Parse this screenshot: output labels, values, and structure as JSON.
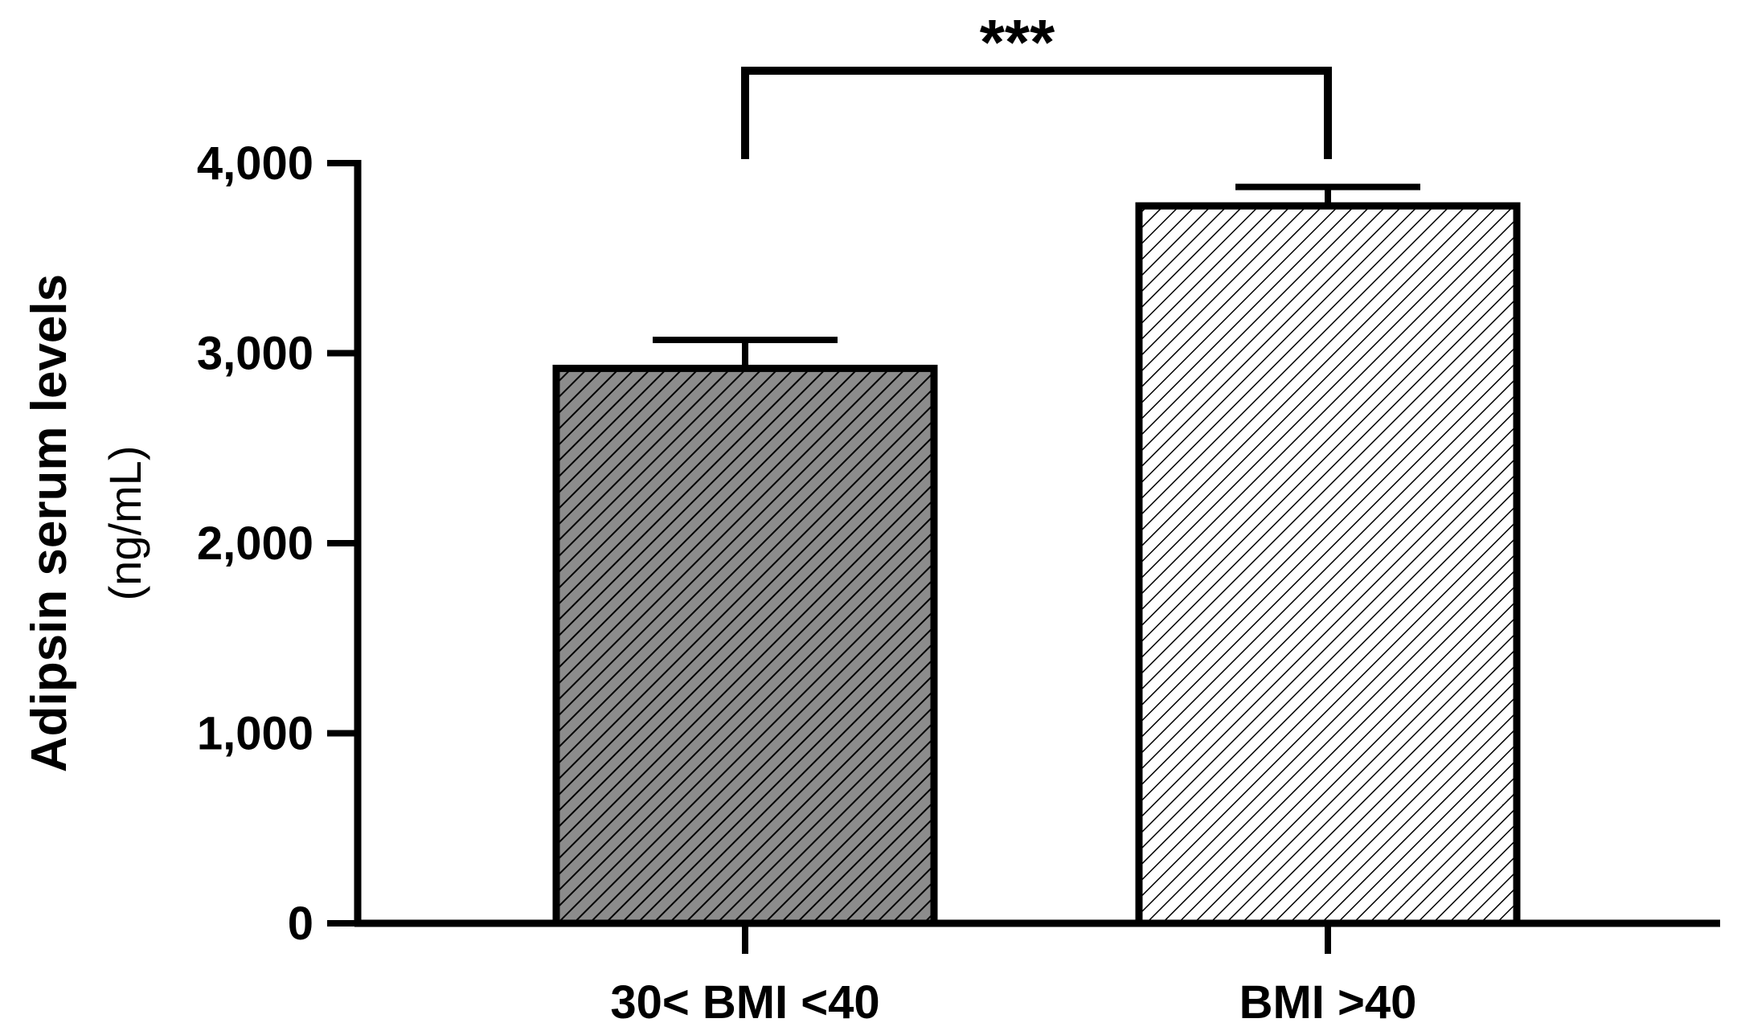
{
  "chart_data": {
    "type": "bar",
    "categories": [
      "30< BMI <40",
      "BMI >40"
    ],
    "values": [
      2920,
      3775
    ],
    "errors": [
      150,
      100
    ],
    "ylabel": "Adipsin serum levels",
    "ylabel_unit": "(ng/mL)",
    "ylim": [
      0,
      4000
    ],
    "yticks": [
      0,
      1000,
      2000,
      3000,
      4000
    ],
    "ytick_labels": [
      "0",
      "1,000",
      "2,000",
      "3,000",
      "4,000"
    ],
    "significance": {
      "label": "***",
      "between": [
        0,
        1
      ]
    },
    "bar_fills": [
      "#8c8c8c",
      "#ffffff"
    ],
    "hatch": "diagonal",
    "grid": false
  }
}
